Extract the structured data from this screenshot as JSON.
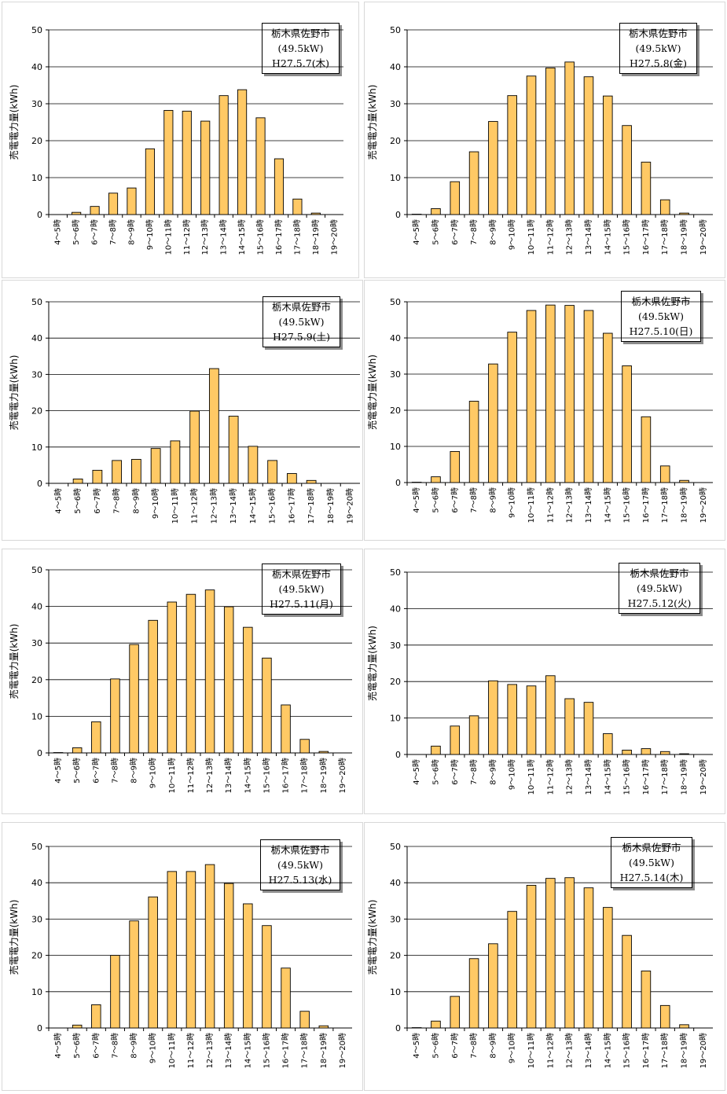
{
  "colors": {
    "bar_fill": "#ffc965",
    "bar_stroke": "#000000",
    "grid": "#000000",
    "panel_border": "#d8d8d8"
  },
  "chart_data": [
    {
      "type": "bar",
      "location": "栃木県佐野市",
      "capacity": "(49.5kW)",
      "date": "H27.5.7(木)",
      "ylabel": "売電電力量(kWh)",
      "ylim": [
        0,
        50
      ],
      "yticks": [
        "0",
        "10",
        "20",
        "30",
        "40",
        "50"
      ],
      "categories": [
        "4～5時",
        "5～6時",
        "6～7時",
        "7～8時",
        "8～9時",
        "9～10時",
        "10～11時",
        "11～12時",
        "12～13時",
        "13～14時",
        "14～15時",
        "15～16時",
        "16～17時",
        "17～18時",
        "18～19時",
        "19～20時"
      ],
      "values": [
        0,
        0.6,
        2.2,
        5.8,
        7.2,
        17.8,
        28.2,
        28.0,
        25.3,
        32.2,
        33.8,
        26.2,
        15.1,
        4.2,
        0.4,
        0
      ]
    },
    {
      "type": "bar",
      "location": "栃木県佐野市",
      "capacity": "(49.5kW)",
      "date": "H27.5.8(金)",
      "ylabel": "売電電力量(kWh)",
      "ylim": [
        0,
        50
      ],
      "yticks": [
        "0",
        "10",
        "20",
        "30",
        "40",
        "50"
      ],
      "categories": [
        "4～5時",
        "5～6時",
        "6～7時",
        "7～8時",
        "8～9時",
        "9～10時",
        "10～11時",
        "11～12時",
        "12～13時",
        "13～14時",
        "14～15時",
        "15～16時",
        "16～17時",
        "17～18時",
        "18～19時",
        "19～20時"
      ],
      "values": [
        0.1,
        1.6,
        8.9,
        17.0,
        25.2,
        32.2,
        37.5,
        39.7,
        41.3,
        37.3,
        32.1,
        24.1,
        14.2,
        4.0,
        0.4,
        0
      ]
    },
    {
      "type": "bar",
      "location": "栃木県佐野市",
      "capacity": "(49.5kW)",
      "date": "H27.5.9(土)",
      "ylabel": "売電電力量(kWh)",
      "ylim": [
        0,
        50
      ],
      "yticks": [
        "0",
        "10",
        "20",
        "30",
        "40",
        "50"
      ],
      "categories": [
        "4～5時",
        "5～6時",
        "6～7時",
        "7～8時",
        "8～9時",
        "9～10時",
        "10～11時",
        "11～12時",
        "12～13時",
        "13～14時",
        "14～15時",
        "15～16時",
        "16～17時",
        "17～18時",
        "18～19時",
        "19～20時"
      ],
      "values": [
        0,
        1.2,
        3.6,
        6.3,
        6.6,
        9.6,
        11.7,
        19.9,
        31.6,
        18.5,
        10.2,
        6.3,
        2.7,
        0.8,
        0,
        0
      ]
    },
    {
      "type": "bar",
      "location": "栃木県佐野市",
      "capacity": "(49.5kW)",
      "date": "H27.5.10(日)",
      "ylabel": "売電電力量(kWh)",
      "ylim": [
        0,
        50
      ],
      "yticks": [
        "0",
        "10",
        "20",
        "30",
        "40",
        "50"
      ],
      "categories": [
        "4～5時",
        "5～6時",
        "6～7時",
        "7～8時",
        "8～9時",
        "9～10時",
        "10～11時",
        "11～12時",
        "12～13時",
        "13～14時",
        "14～15時",
        "15～16時",
        "16～17時",
        "17～18時",
        "18～19時",
        "19～20時"
      ],
      "values": [
        0.1,
        1.6,
        8.6,
        22.5,
        32.8,
        41.6,
        47.6,
        49.1,
        49.0,
        47.6,
        41.3,
        32.3,
        18.2,
        4.6,
        0.6,
        0
      ]
    },
    {
      "type": "bar",
      "location": "栃木県佐野市",
      "capacity": "(49.5kW)",
      "date": "H27.5.11(月)",
      "ylabel": "売電電力量(kWh)",
      "ylim": [
        0,
        50
      ],
      "yticks": [
        "0",
        "10",
        "20",
        "30",
        "40",
        "50"
      ],
      "categories": [
        "4～5時",
        "5～6時",
        "6～7時",
        "7～8時",
        "8～9時",
        "9～10時",
        "10～11時",
        "11～12時",
        "12～13時",
        "13～14時",
        "14～15時",
        "15～16時",
        "16～17時",
        "17～18時",
        "18～19時",
        "19～20時"
      ],
      "values": [
        0.1,
        1.4,
        8.5,
        20.2,
        29.6,
        36.2,
        41.2,
        43.3,
        44.5,
        39.9,
        34.3,
        25.9,
        13.1,
        3.7,
        0.4,
        0
      ]
    },
    {
      "type": "bar",
      "location": "栃木県佐野市",
      "capacity": "(49.5kW)",
      "date": "H27.5.12(火)",
      "ylabel": "売電電力量(kWh)",
      "ylim": [
        0,
        50
      ],
      "yticks": [
        "0",
        "10",
        "20",
        "30",
        "40",
        "50"
      ],
      "categories": [
        "4～5時",
        "5～6時",
        "6～7時",
        "7～8時",
        "8～9時",
        "9～10時",
        "10～11時",
        "11～12時",
        "12～13時",
        "13～14時",
        "14～15時",
        "15～16時",
        "16～17時",
        "17～18時",
        "18～19時",
        "19～20時"
      ],
      "values": [
        0,
        2.3,
        7.8,
        10.6,
        20.2,
        19.2,
        18.8,
        21.6,
        15.3,
        14.3,
        5.7,
        1.2,
        1.6,
        0.8,
        0.2,
        0
      ]
    },
    {
      "type": "bar",
      "location": "栃木県佐野市",
      "capacity": "(49.5kW)",
      "date": "H27.5.13(水)",
      "ylabel": "売電電力量(kWh)",
      "ylim": [
        0,
        50
      ],
      "yticks": [
        "0",
        "10",
        "20",
        "30",
        "40",
        "50"
      ],
      "categories": [
        "4～5時",
        "5～6時",
        "6～7時",
        "7～8時",
        "8～9時",
        "9～10時",
        "10～11時",
        "11～12時",
        "12～13時",
        "13～14時",
        "14～15時",
        "15～16時",
        "16～17時",
        "17～18時",
        "18～19時",
        "19～20時"
      ],
      "values": [
        0,
        0.8,
        6.4,
        20.0,
        29.5,
        36.1,
        43.1,
        43.1,
        45.0,
        39.8,
        34.2,
        28.2,
        16.5,
        4.6,
        0.6,
        0
      ]
    },
    {
      "type": "bar",
      "location": "栃木県佐野市",
      "capacity": "(49.5kW)",
      "date": "H27.5.14(木)",
      "ylabel": "売電電力量(kWh)",
      "ylim": [
        0,
        50
      ],
      "yticks": [
        "0",
        "10",
        "20",
        "30",
        "40",
        "50"
      ],
      "categories": [
        "4～5時",
        "5～6時",
        "6～7時",
        "7～8時",
        "8～9時",
        "9～10時",
        "10～11時",
        "11～12時",
        "12～13時",
        "13～14時",
        "14～15時",
        "15～16時",
        "16～17時",
        "17～18時",
        "18～19時",
        "19～20時"
      ],
      "values": [
        0.1,
        1.9,
        8.7,
        19.1,
        23.2,
        32.1,
        39.3,
        41.2,
        41.4,
        38.6,
        33.2,
        25.5,
        15.7,
        6.2,
        0.9,
        0
      ]
    }
  ]
}
